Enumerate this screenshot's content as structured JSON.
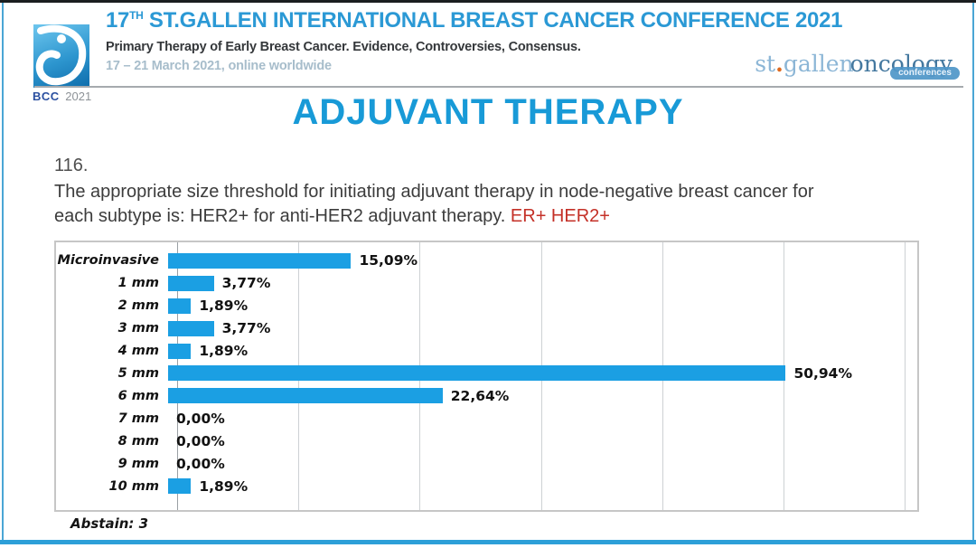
{
  "header": {
    "logo": {
      "bcc": "BCC",
      "year": "2021"
    },
    "title": {
      "prefix": "17",
      "sup": "TH",
      "rest": " ST.GALLEN INTERNATIONAL BREAST CANCER CONFERENCE 2021"
    },
    "subtitle": "Primary Therapy of Early Breast Cancer. Evidence, Controversies, Consensus.",
    "date": "17 – 21 March 2021, online worldwide",
    "brand": {
      "st": "st",
      "dot": ".",
      "gallen": "gallen",
      "oncology": "oncology",
      "conferences": "conferences"
    }
  },
  "slide": {
    "title": "ADJUVANT THERAPY",
    "question_number": "116.",
    "question_line1": "The appropriate size threshold for initiating adjuvant therapy in node-negative breast cancer for",
    "question_line2": "each subtype is: HER2+ for anti-HER2 adjuvant therapy. ",
    "question_highlight": "ER+ HER2+"
  },
  "chart_data": {
    "type": "bar",
    "orientation": "horizontal",
    "title": "",
    "xlabel": "",
    "ylabel": "",
    "categories": [
      "Microinvasive",
      "1 mm",
      "2 mm",
      "3 mm",
      "4 mm",
      "5 mm",
      "6 mm",
      "7 mm",
      "8 mm",
      "9 mm",
      "10 mm"
    ],
    "values": [
      15.09,
      3.77,
      1.89,
      3.77,
      1.89,
      50.94,
      22.64,
      0.0,
      0.0,
      0.0,
      1.89
    ],
    "value_labels": [
      "15,09%",
      "3,77%",
      "1,89%",
      "3,77%",
      "1,89%",
      "50,94%",
      "22,64%",
      "0,00%",
      "0,00%",
      "0,00%",
      "1,89%"
    ],
    "xlim": [
      0,
      60
    ],
    "gridline_step_percent": 10,
    "grid": true,
    "legend": null,
    "bar_color": "#1b9fe3",
    "abstain": "Abstain: 3"
  },
  "colors": {
    "accent_blue": "#189ad7",
    "frame_blue": "#4aa6d5",
    "highlight_red": "#c43027"
  }
}
